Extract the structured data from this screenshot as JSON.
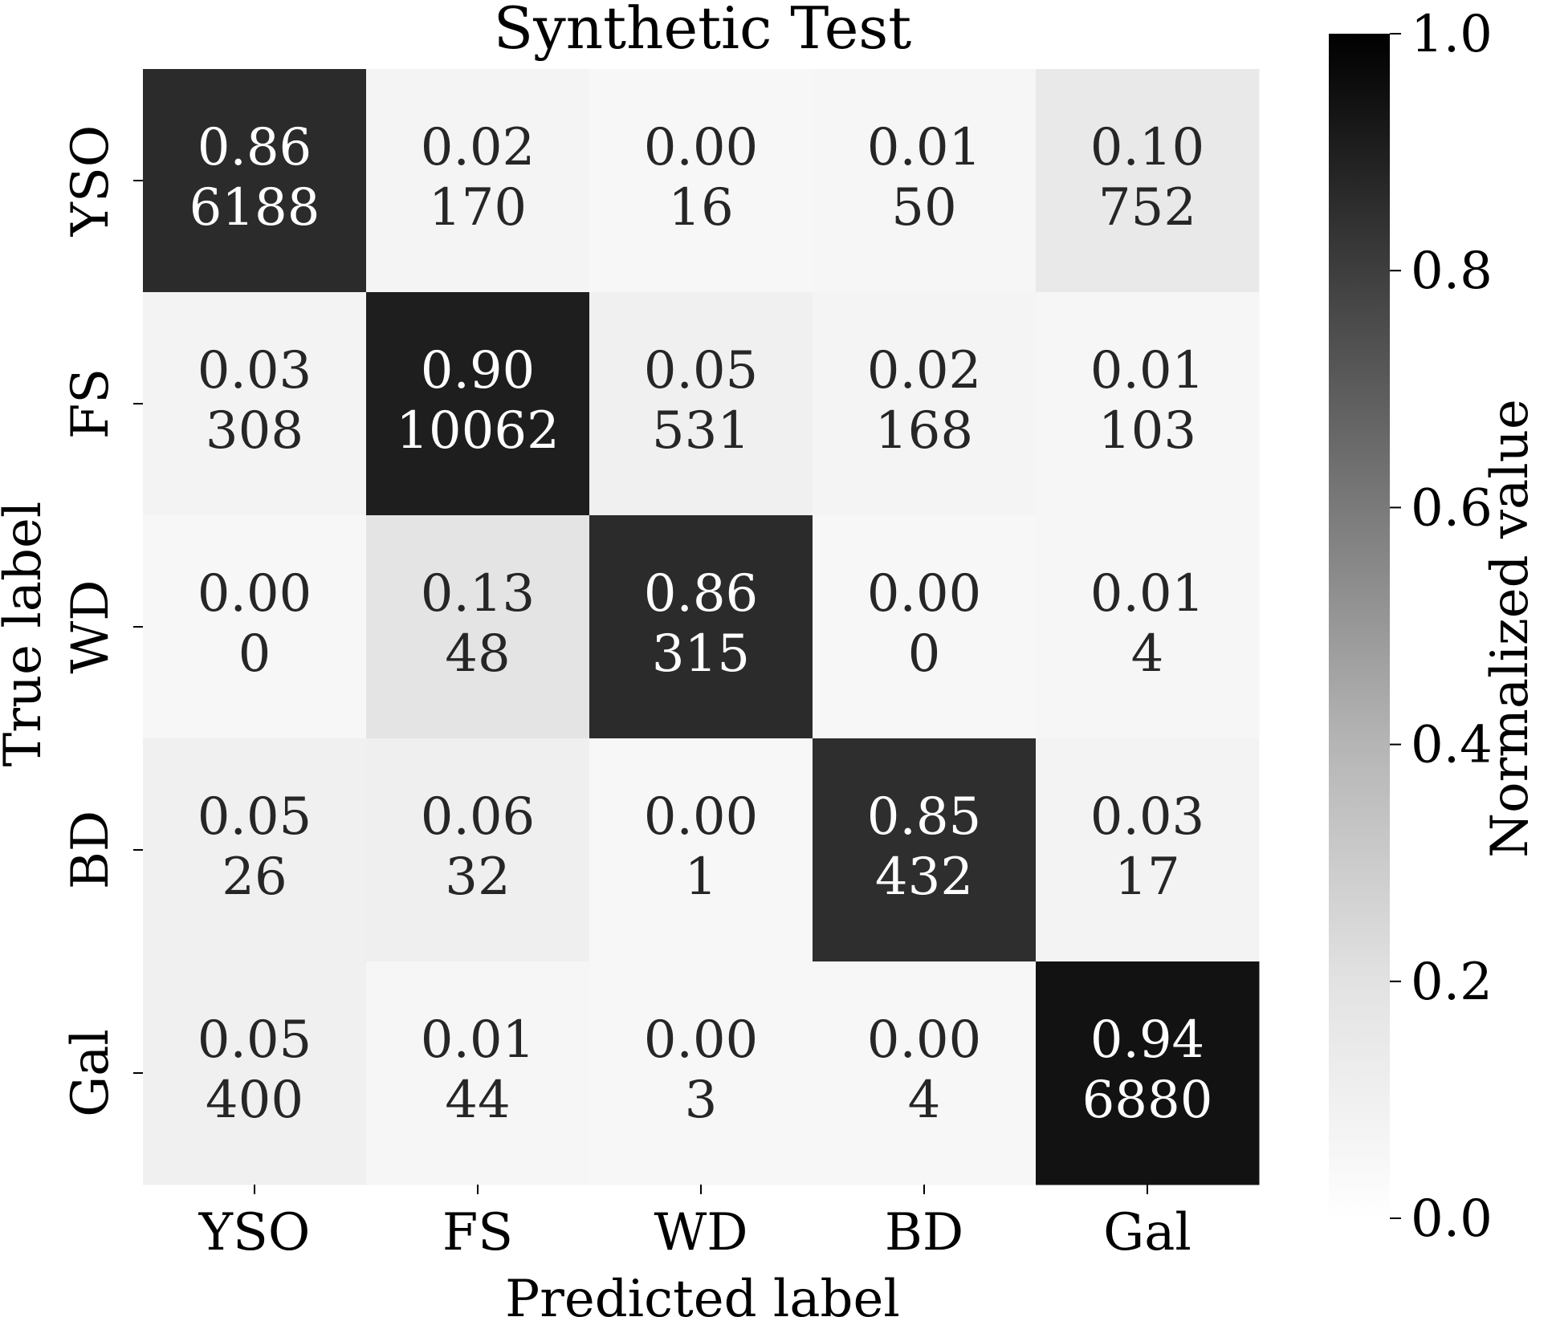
{
  "chart_data": {
    "type": "heatmap",
    "title": "Synthetic Test",
    "xlabel": "Predicted label",
    "ylabel": "True label",
    "x_categories": [
      "YSO",
      "FS",
      "WD",
      "BD",
      "Gal"
    ],
    "y_categories": [
      "YSO",
      "FS",
      "WD",
      "BD",
      "Gal"
    ],
    "normalized": [
      [
        "0.86",
        "0.02",
        "0.00",
        "0.01",
        "0.10"
      ],
      [
        "0.03",
        "0.90",
        "0.05",
        "0.02",
        "0.01"
      ],
      [
        "0.00",
        "0.13",
        "0.86",
        "0.00",
        "0.01"
      ],
      [
        "0.05",
        "0.06",
        "0.00",
        "0.85",
        "0.03"
      ],
      [
        "0.05",
        "0.01",
        "0.00",
        "0.00",
        "0.94"
      ]
    ],
    "counts": [
      [
        "6188",
        "170",
        "16",
        "50",
        "752"
      ],
      [
        "308",
        "10062",
        "531",
        "168",
        "103"
      ],
      [
        "0",
        "48",
        "315",
        "0",
        "4"
      ],
      [
        "26",
        "32",
        "1",
        "432",
        "17"
      ],
      [
        "400",
        "44",
        "3",
        "4",
        "6880"
      ]
    ],
    "colorbar": {
      "label": "Normalized value",
      "range": [
        0,
        1
      ],
      "ticks": [
        "0.0",
        "0.2",
        "0.4",
        "0.6",
        "0.8",
        "1.0"
      ],
      "colormap": "Greys",
      "color_low": "#ffffff",
      "color_high": "#000000"
    }
  }
}
